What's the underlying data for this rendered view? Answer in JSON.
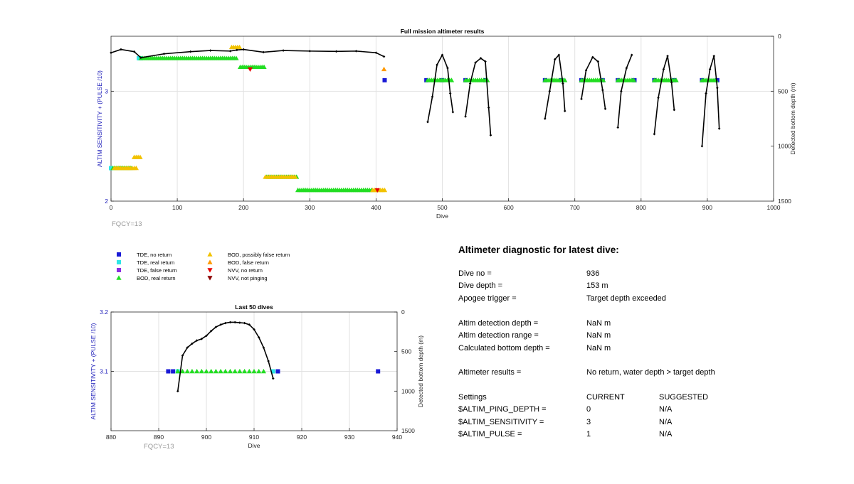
{
  "colors": {
    "tde_no_return": "#1a1ad6",
    "tde_real_return": "#2ee6e6",
    "tde_false_return": "#8a2be2",
    "bod_real_return": "#22dd22",
    "bod_possibly_false": "#f2c200",
    "bod_false_return": "#ff9900",
    "nvv_no_return": "#e60000",
    "nvv_not_pinging": "#8b0000",
    "depth_trace": "#000000",
    "left_axis": "#1a1ab8",
    "fqcy_text": "#999999",
    "grid": "#e2e2e2"
  },
  "legend": [
    {
      "label": "TDE, no return",
      "marker": "square",
      "color_key": "tde_no_return"
    },
    {
      "label": "TDE, real return",
      "marker": "square",
      "color_key": "tde_real_return"
    },
    {
      "label": "TDE, false return",
      "marker": "square",
      "color_key": "tde_false_return"
    },
    {
      "label": "BOD, real return",
      "marker": "triangle-up",
      "color_key": "bod_real_return"
    },
    {
      "label": "BOD, possibly false return",
      "marker": "triangle-up",
      "color_key": "bod_possibly_false"
    },
    {
      "label": "BOD, false return",
      "marker": "triangle-up",
      "color_key": "bod_false_return"
    },
    {
      "label": "NVV, no return",
      "marker": "triangle-down",
      "color_key": "nvv_no_return"
    },
    {
      "label": "NVV, not pinging",
      "marker": "triangle-down",
      "color_key": "nvv_not_pinging"
    }
  ],
  "chart_data": [
    {
      "type": "scatter",
      "title": "Full mission altimeter results",
      "xlabel": "Dive",
      "ylabel": "ALTIM SENSITIVITY + (PULSE /10)",
      "y2label": "Detected bottom depth (m)",
      "xlim": [
        0,
        1000
      ],
      "ylim": [
        2,
        3.5
      ],
      "y2lim": [
        0,
        1500
      ],
      "y2_reversed": true,
      "xticks": [
        0,
        100,
        200,
        300,
        400,
        500,
        600,
        700,
        800,
        900,
        1000
      ],
      "yticks": [
        2,
        3
      ],
      "y2ticks": [
        0,
        500,
        1000,
        1500
      ],
      "grid": true,
      "annotation": "FQCY=13",
      "series": [
        {
          "name": "TDE, no return",
          "marker": "square",
          "color_key": "tde_no_return",
          "points": [
            [
              413,
              3.1
            ],
            [
              476,
              3.1
            ],
            [
              500,
              3.1
            ],
            [
              535,
              3.1
            ],
            [
              565,
              3.1
            ],
            [
              655,
              3.1
            ],
            [
              680,
              3.1
            ],
            [
              710,
              3.1
            ],
            [
              742,
              3.1
            ],
            [
              765,
              3.1
            ],
            [
              790,
              3.1
            ],
            [
              820,
              3.1
            ],
            [
              850,
              3.1
            ],
            [
              892,
              3.1
            ],
            [
              915,
              3.1
            ]
          ]
        },
        {
          "name": "TDE, real return",
          "marker": "square",
          "color_key": "tde_real_return",
          "points": [
            [
              0,
              2.3
            ],
            [
              42,
              3.3
            ],
            [
              45,
              3.3
            ]
          ]
        },
        {
          "name": "BOD, real return",
          "marker": "triangle-up",
          "color_key": "bod_real_return",
          "runs": [
            [
              3,
              30,
              2.3
            ],
            [
              45,
              190,
              3.3
            ],
            [
              195,
              232,
              3.22
            ],
            [
              235,
              280,
              2.22
            ],
            [
              282,
              395,
              2.1
            ],
            [
              478,
              515,
              3.1
            ],
            [
              535,
              570,
              3.1
            ],
            [
              655,
              685,
              3.1
            ],
            [
              710,
              745,
              3.1
            ],
            [
              765,
              790,
              3.1
            ],
            [
              820,
              855,
              3.1
            ],
            [
              892,
              915,
              3.1
            ]
          ]
        },
        {
          "name": "BOD, possibly false return",
          "marker": "triangle-up",
          "color_key": "bod_possibly_false",
          "runs": [
            [
              5,
              38,
              2.3
            ],
            [
              35,
              45,
              2.4
            ],
            [
              182,
              196,
              3.4
            ],
            [
              233,
              278,
              2.22
            ],
            [
              395,
              413,
              2.1
            ]
          ]
        },
        {
          "name": "BOD, false return",
          "marker": "triangle-up",
          "color_key": "bod_false_return",
          "points": [
            [
              412,
              3.2
            ]
          ]
        },
        {
          "name": "NVV, no return",
          "marker": "triangle-down",
          "color_key": "nvv_no_return",
          "points": [
            [
              210,
              3.2
            ],
            [
              402,
              2.1
            ]
          ]
        }
      ],
      "depth_trace": {
        "marker": "diamond",
        "color_key": "depth_trace",
        "segments": [
          [
            [
              0,
              150
            ],
            [
              15,
              120
            ],
            [
              35,
              140
            ],
            [
              45,
              195
            ],
            [
              80,
              160
            ],
            [
              120,
              140
            ],
            [
              150,
              130
            ],
            [
              180,
              135
            ],
            [
              190,
              125
            ],
            [
              200,
              120
            ],
            [
              230,
              145
            ],
            [
              260,
              130
            ],
            [
              300,
              135
            ],
            [
              340,
              138
            ],
            [
              370,
              135
            ],
            [
              400,
              150
            ],
            [
              412,
              185
            ]
          ],
          [
            [
              478,
              780
            ],
            [
              485,
              550
            ],
            [
              492,
              260
            ],
            [
              500,
              170
            ],
            [
              508,
              290
            ],
            [
              512,
              520
            ],
            [
              516,
              690
            ]
          ],
          [
            [
              535,
              730
            ],
            [
              542,
              430
            ],
            [
              550,
              240
            ],
            [
              558,
              200
            ],
            [
              565,
              230
            ],
            [
              570,
              650
            ],
            [
              573,
              900
            ]
          ],
          [
            [
              655,
              750
            ],
            [
              662,
              500
            ],
            [
              670,
              210
            ],
            [
              676,
              170
            ],
            [
              682,
              430
            ],
            [
              685,
              680
            ]
          ],
          [
            [
              710,
              570
            ],
            [
              717,
              310
            ],
            [
              727,
              190
            ],
            [
              735,
              230
            ],
            [
              742,
              490
            ],
            [
              746,
              660
            ]
          ],
          [
            [
              765,
              830
            ],
            [
              770,
              500
            ],
            [
              778,
              290
            ],
            [
              786,
              170
            ]
          ],
          [
            [
              820,
              890
            ],
            [
              826,
              560
            ],
            [
              834,
              300
            ],
            [
              840,
              180
            ],
            [
              846,
              420
            ],
            [
              850,
              670
            ]
          ],
          [
            [
              892,
              1000
            ],
            [
              898,
              520
            ],
            [
              904,
              300
            ],
            [
              910,
              180
            ],
            [
              915,
              470
            ],
            [
              918,
              840
            ]
          ]
        ]
      }
    },
    {
      "type": "scatter",
      "title": "Last 50 dives",
      "xlabel": "Dive",
      "ylabel": "ALTIM SENSITIVITY + (PULSE /10)",
      "y2label": "Detected bottom depth (m)",
      "xlim": [
        880,
        940
      ],
      "ylim": [
        3.0,
        3.2
      ],
      "y2lim": [
        0,
        1500
      ],
      "y2_reversed": true,
      "xticks": [
        880,
        890,
        900,
        910,
        920,
        930,
        940
      ],
      "yticks": [
        3.1,
        3.2
      ],
      "y2ticks": [
        0,
        500,
        1000,
        1500
      ],
      "grid": true,
      "annotation": "FQCY=13",
      "series": [
        {
          "name": "TDE, no return",
          "marker": "square",
          "color_key": "tde_no_return",
          "points": [
            [
              892,
              3.1
            ],
            [
              893,
              3.1
            ],
            [
              915,
              3.1
            ],
            [
              936,
              3.1
            ]
          ]
        },
        {
          "name": "TDE, real return",
          "marker": "square",
          "color_key": "tde_real_return",
          "points": [
            [
              894,
              3.1
            ],
            [
              914,
              3.1
            ]
          ]
        },
        {
          "name": "BOD, real return",
          "marker": "triangle-up",
          "color_key": "bod_real_return",
          "runs": [
            [
              894,
              912,
              3.1
            ]
          ]
        }
      ],
      "depth_trace": {
        "marker": "diamond",
        "color_key": "depth_trace",
        "segments": [
          [
            [
              894,
              1000
            ],
            [
              895,
              550
            ],
            [
              896,
              450
            ],
            [
              897,
              400
            ],
            [
              898,
              360
            ],
            [
              899,
              340
            ],
            [
              900,
              300
            ],
            [
              901,
              240
            ],
            [
              902,
              190
            ],
            [
              903,
              160
            ],
            [
              904,
              140
            ],
            [
              905,
              130
            ],
            [
              906,
              130
            ],
            [
              907,
              135
            ],
            [
              908,
              140
            ],
            [
              909,
              160
            ],
            [
              910,
              220
            ],
            [
              911,
              320
            ],
            [
              912,
              450
            ],
            [
              913,
              620
            ],
            [
              914,
              840
            ]
          ]
        ]
      }
    }
  ],
  "diagnostic": {
    "title": "Altimeter diagnostic for latest dive:",
    "rows": [
      {
        "label": "Dive no =",
        "value": "936"
      },
      {
        "label": "Dive depth =",
        "value": "153 m"
      },
      {
        "label": "Apogee trigger =",
        "value": "Target depth exceeded"
      },
      {
        "label": "Altim detection depth =",
        "value": "NaN m"
      },
      {
        "label": "Altim detection range =",
        "value": "NaN m"
      },
      {
        "label": "Calculated bottom depth =",
        "value": "NaN m"
      },
      {
        "label": "Altimeter results =",
        "value": "No return, water depth > target depth"
      }
    ],
    "settings_header": {
      "label": "Settings",
      "current": "CURRENT",
      "suggested": "SUGGESTED"
    },
    "settings": [
      {
        "label": "$ALTIM_PING_DEPTH =",
        "current": "0",
        "suggested": "N/A"
      },
      {
        "label": "$ALTIM_SENSITIVITY =",
        "current": "3",
        "suggested": "N/A"
      },
      {
        "label": "$ALTIM_PULSE =",
        "current": "1",
        "suggested": "N/A"
      }
    ]
  }
}
